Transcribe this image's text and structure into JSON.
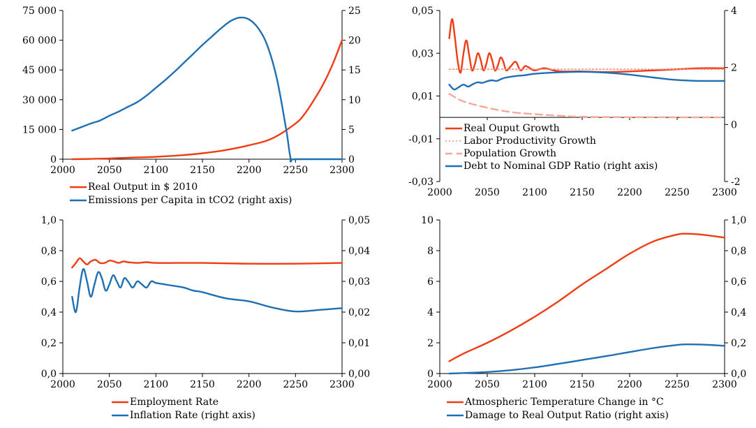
{
  "colors": {
    "red": "#f03c14",
    "blue": "#1f6fb4",
    "light_red": "#f59080",
    "salmon": "#f5a898"
  },
  "chart_data": [
    {
      "id": "output-emissions",
      "type": "line",
      "title": "",
      "xlim": [
        2000,
        2300
      ],
      "x_ticks": [
        "2000",
        "2050",
        "2100",
        "2150",
        "2200",
        "2250",
        "2300"
      ],
      "y_left": {
        "lim": [
          0,
          75000
        ],
        "ticks": [
          "0",
          "15 000",
          "30 000",
          "45 000",
          "60 000",
          "75 000"
        ]
      },
      "y_right": {
        "lim": [
          0,
          25
        ],
        "ticks": [
          "0",
          "5",
          "10",
          "15",
          "20",
          "25"
        ]
      },
      "series": [
        {
          "name": "Real Output in $ 2010",
          "axis": "left",
          "color": "#f03c14",
          "dash": "",
          "x": [
            2010,
            2030,
            2050,
            2075,
            2100,
            2125,
            2150,
            2175,
            2200,
            2225,
            2250,
            2260,
            2270,
            2280,
            2290,
            2300
          ],
          "y": [
            0,
            150,
            400,
            800,
            1200,
            1900,
            3000,
            4600,
            7000,
            10500,
            18000,
            23000,
            30000,
            38000,
            48000,
            60000
          ]
        },
        {
          "name": "Emissions per Capita in tCO2 (right axis)",
          "axis": "right",
          "color": "#1f6fb4",
          "dash": "",
          "x": [
            2010,
            2020,
            2030,
            2040,
            2050,
            2060,
            2070,
            2080,
            2090,
            2100,
            2110,
            2120,
            2130,
            2140,
            2150,
            2160,
            2170,
            2180,
            2190,
            2200,
            2210,
            2220,
            2230,
            2240,
            2245,
            2250,
            2300
          ],
          "y": [
            4.8,
            5.4,
            6.0,
            6.5,
            7.3,
            8.0,
            8.8,
            9.6,
            10.7,
            12.0,
            13.3,
            14.7,
            16.2,
            17.7,
            19.2,
            20.6,
            22.0,
            23.2,
            23.8,
            23.5,
            22.0,
            19.0,
            13.5,
            5.0,
            0,
            0,
            0
          ]
        }
      ],
      "legend": [
        "Real Output in $ 2010",
        "Emissions per Capita in tCO2 (right axis)"
      ]
    },
    {
      "id": "growth-debt",
      "type": "line",
      "title": "",
      "xlim": [
        2000,
        2300
      ],
      "x_ticks": [
        "2000",
        "2050",
        "2100",
        "2150",
        "2200",
        "2250",
        "2300"
      ],
      "y_left": {
        "lim": [
          -0.03,
          0.05
        ],
        "ticks": [
          "-0,03",
          "-0,01",
          "0,01",
          "0,03",
          "0,05"
        ]
      },
      "y_right": {
        "lim": [
          -2,
          4
        ],
        "ticks": [
          "-2",
          "0",
          "2",
          "4"
        ]
      },
      "series": [
        {
          "name": "Real Ouput Growth",
          "axis": "left",
          "color": "#f03c14",
          "dash": "",
          "x": [
            2010,
            2013,
            2016,
            2019,
            2022,
            2025,
            2028,
            2031,
            2034,
            2037,
            2040,
            2043,
            2046,
            2049,
            2052,
            2055,
            2058,
            2061,
            2064,
            2067,
            2070,
            2075,
            2080,
            2085,
            2090,
            2095,
            2100,
            2110,
            2120,
            2130,
            2150,
            2175,
            2200,
            2225,
            2250,
            2275,
            2300
          ],
          "y": [
            0.037,
            0.046,
            0.037,
            0.026,
            0.021,
            0.03,
            0.036,
            0.029,
            0.022,
            0.025,
            0.03,
            0.027,
            0.022,
            0.025,
            0.03,
            0.027,
            0.022,
            0.024,
            0.028,
            0.026,
            0.022,
            0.024,
            0.026,
            0.022,
            0.024,
            0.023,
            0.022,
            0.023,
            0.022,
            0.0215,
            0.0215,
            0.0212,
            0.0215,
            0.022,
            0.0225,
            0.023,
            0.023
          ]
        },
        {
          "name": "Labor Productivity Growth",
          "axis": "left",
          "color": "#f59080",
          "dash": "2,3",
          "x": [
            2010,
            2300
          ],
          "y": [
            0.0225,
            0.0225
          ]
        },
        {
          "name": "Population Growth",
          "axis": "left",
          "color": "#f5a898",
          "dash": "10,6",
          "x": [
            2010,
            2025,
            2050,
            2075,
            2100,
            2125,
            2150,
            2200,
            2300
          ],
          "y": [
            0.011,
            0.0075,
            0.0045,
            0.0025,
            0.0015,
            0.0008,
            0.0003,
            0.0001,
            0.0
          ]
        },
        {
          "name": "Debt to Nominal GDP Ratio (right axis)",
          "axis": "right",
          "color": "#1f6fb4",
          "dash": "",
          "x": [
            2010,
            2015,
            2020,
            2025,
            2030,
            2035,
            2040,
            2045,
            2050,
            2055,
            2060,
            2065,
            2070,
            2080,
            2090,
            2100,
            2125,
            2150,
            2175,
            2200,
            2225,
            2250,
            2275,
            2300
          ],
          "y": [
            1.4,
            1.23,
            1.31,
            1.4,
            1.33,
            1.42,
            1.48,
            1.46,
            1.52,
            1.55,
            1.53,
            1.6,
            1.65,
            1.7,
            1.73,
            1.78,
            1.83,
            1.85,
            1.82,
            1.75,
            1.65,
            1.56,
            1.53,
            1.53
          ]
        }
      ],
      "legend": [
        "Real Ouput Growth",
        "Labor Productivity Growth",
        "Population Growth",
        "Debt to Nominal GDP Ratio (right axis)"
      ]
    },
    {
      "id": "employment-inflation",
      "type": "line",
      "title": "",
      "xlim": [
        2000,
        2300
      ],
      "x_ticks": [
        "2000",
        "2050",
        "2100",
        "2150",
        "2200",
        "2250",
        "2300"
      ],
      "y_left": {
        "lim": [
          0,
          1.0
        ],
        "ticks": [
          "0,0",
          "0,2",
          "0,4",
          "0,6",
          "0,8",
          "1,0"
        ]
      },
      "y_right": {
        "lim": [
          0,
          0.05
        ],
        "ticks": [
          "0,00",
          "0,01",
          "0,02",
          "0,03",
          "0,04",
          "0,05"
        ]
      },
      "series": [
        {
          "name": "Employment Rate",
          "axis": "left",
          "color": "#f03c14",
          "dash": "",
          "x": [
            2010,
            2014,
            2018,
            2022,
            2026,
            2030,
            2035,
            2040,
            2045,
            2050,
            2055,
            2060,
            2065,
            2070,
            2080,
            2090,
            2100,
            2125,
            2150,
            2200,
            2250,
            2300
          ],
          "y": [
            0.69,
            0.72,
            0.75,
            0.73,
            0.71,
            0.73,
            0.74,
            0.72,
            0.72,
            0.735,
            0.73,
            0.72,
            0.73,
            0.725,
            0.72,
            0.725,
            0.72,
            0.72,
            0.72,
            0.715,
            0.715,
            0.72
          ]
        },
        {
          "name": "Inflation Rate (right axis)",
          "axis": "right",
          "color": "#1f6fb4",
          "dash": "",
          "x": [
            2010,
            2014,
            2018,
            2022,
            2026,
            2030,
            2034,
            2038,
            2042,
            2046,
            2050,
            2054,
            2058,
            2062,
            2066,
            2070,
            2075,
            2080,
            2085,
            2090,
            2095,
            2100,
            2110,
            2120,
            2130,
            2140,
            2150,
            2175,
            2200,
            2225,
            2250,
            2275,
            2300
          ],
          "y": [
            0.025,
            0.02,
            0.028,
            0.034,
            0.03,
            0.025,
            0.029,
            0.033,
            0.031,
            0.027,
            0.029,
            0.032,
            0.03,
            0.028,
            0.031,
            0.03,
            0.028,
            0.03,
            0.029,
            0.028,
            0.03,
            0.0295,
            0.029,
            0.0285,
            0.028,
            0.027,
            0.0265,
            0.0245,
            0.0235,
            0.0215,
            0.0202,
            0.0207,
            0.0213
          ]
        }
      ],
      "legend": [
        "Employment Rate",
        "Inflation Rate (right axis)"
      ]
    },
    {
      "id": "temperature-damage",
      "type": "line",
      "title": "",
      "xlim": [
        2000,
        2300
      ],
      "x_ticks": [
        "2000",
        "2050",
        "2100",
        "2150",
        "2200",
        "2250",
        "2300"
      ],
      "y_left": {
        "lim": [
          0,
          10
        ],
        "ticks": [
          "0",
          "2",
          "4",
          "6",
          "8",
          "10"
        ]
      },
      "y_right": {
        "lim": [
          0,
          1.0
        ],
        "ticks": [
          "0,0",
          "0,2",
          "0,4",
          "0,6",
          "0,8",
          "1,0"
        ]
      },
      "series": [
        {
          "name": "Atmospheric Temperature Change in °C",
          "axis": "left",
          "color": "#f03c14",
          "dash": "",
          "x": [
            2010,
            2025,
            2050,
            2075,
            2100,
            2125,
            2150,
            2175,
            2200,
            2225,
            2250,
            2260,
            2275,
            2300
          ],
          "y": [
            0.8,
            1.3,
            2.0,
            2.8,
            3.7,
            4.7,
            5.8,
            6.8,
            7.8,
            8.6,
            9.05,
            9.1,
            9.05,
            8.85
          ]
        },
        {
          "name": "Damage to Real Output Ratio  (right axis)",
          "axis": "right",
          "color": "#1f6fb4",
          "dash": "",
          "x": [
            2010,
            2025,
            2050,
            2075,
            2100,
            2125,
            2150,
            2175,
            2200,
            2225,
            2250,
            2260,
            2275,
            2300
          ],
          "y": [
            0.0,
            0.003,
            0.01,
            0.022,
            0.04,
            0.063,
            0.088,
            0.113,
            0.14,
            0.166,
            0.186,
            0.19,
            0.189,
            0.181
          ]
        }
      ],
      "legend": [
        "Atmospheric Temperature Change in °C",
        "Damage to Real Output Ratio  (right axis)"
      ]
    }
  ]
}
